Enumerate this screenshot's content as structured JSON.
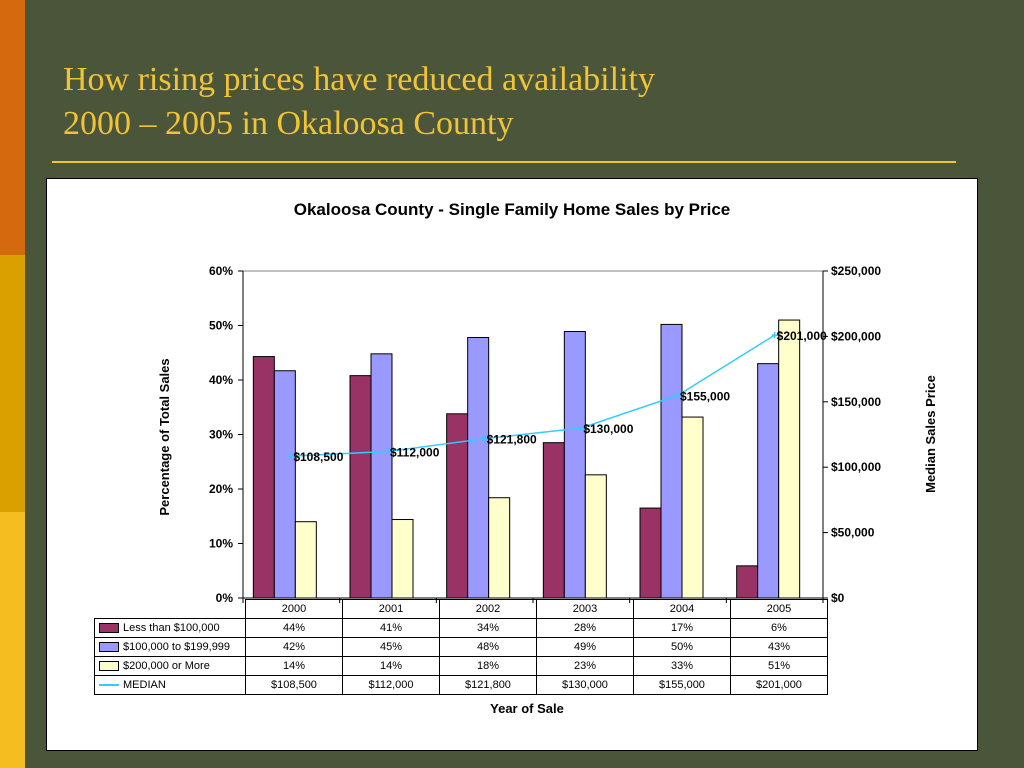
{
  "slide": {
    "title_line1": "How rising prices have reduced availability",
    "title_line2": "2000 – 2005 in Okaloosa County"
  },
  "colors": {
    "background": "#4b553a",
    "title": "#f0c435",
    "series_low": "#993366",
    "series_mid": "#9999ff",
    "series_high": "#ffffcc",
    "median_line": "#33ccff"
  },
  "chart_data": {
    "type": "bar",
    "title": "Okaloosa County - Single Family Home Sales by Price",
    "xlabel": "Year of Sale",
    "ylabel": "Percentage of Total Sales",
    "y2label": "Median Sales Price",
    "categories": [
      "2000",
      "2001",
      "2002",
      "2003",
      "2004",
      "2005"
    ],
    "ylim": [
      0,
      60
    ],
    "y2lim": [
      0,
      250000
    ],
    "yticks": [
      "0%",
      "10%",
      "20%",
      "30%",
      "40%",
      "50%",
      "60%"
    ],
    "y2ticks": [
      "$0",
      "$50,000",
      "$100,000",
      "$150,000",
      "$200,000",
      "$250,000"
    ],
    "grid": false,
    "legend": "data table",
    "series": [
      {
        "name": "Less than $100,000",
        "values": [
          44.3,
          40.8,
          33.8,
          28.5,
          16.5,
          5.9
        ],
        "labels": [
          "44%",
          "41%",
          "34%",
          "28%",
          "17%",
          "6%"
        ],
        "axis": "left",
        "kind": "bar",
        "color": "#993366"
      },
      {
        "name": "$100,000 to $199,999",
        "values": [
          41.7,
          44.8,
          47.8,
          48.9,
          50.2,
          43.0
        ],
        "labels": [
          "42%",
          "45%",
          "48%",
          "49%",
          "50%",
          "43%"
        ],
        "axis": "left",
        "kind": "bar",
        "color": "#9999ff"
      },
      {
        "name": "$200,000 or More",
        "values": [
          14.0,
          14.4,
          18.4,
          22.6,
          33.2,
          51.0
        ],
        "labels": [
          "14%",
          "14%",
          "18%",
          "23%",
          "33%",
          "51%"
        ],
        "axis": "left",
        "kind": "bar",
        "color": "#ffffcc"
      },
      {
        "name": "MEDIAN",
        "values": [
          108500,
          112000,
          121800,
          130000,
          155000,
          201000
        ],
        "labels": [
          "$108,500",
          "$112,000",
          "$121,800",
          "$130,000",
          "$155,000",
          "$201,000"
        ],
        "axis": "right",
        "kind": "line",
        "color": "#33ccff"
      }
    ]
  }
}
